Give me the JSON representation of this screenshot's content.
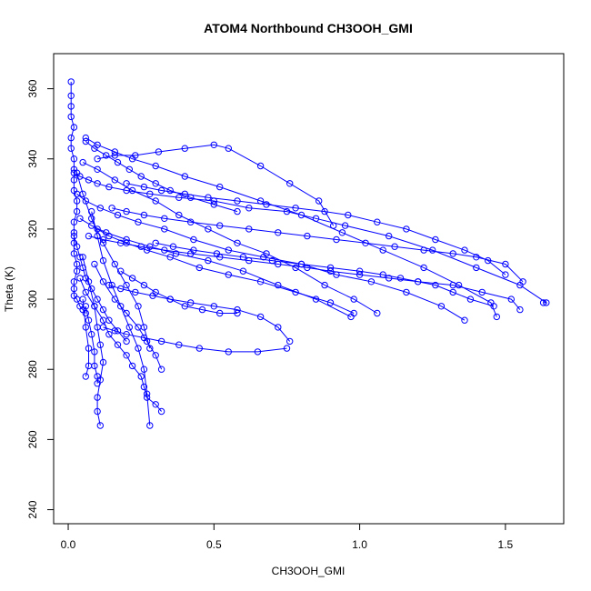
{
  "chart_data": {
    "type": "line",
    "title": "ATOM4 Northbound CH3OOH_GMI",
    "xlabel": "CH3OOH_GMI",
    "ylabel": "Theta (K)",
    "xlim": [
      -0.05,
      1.7
    ],
    "ylim": [
      236,
      370
    ],
    "x_ticks": [
      0.0,
      0.5,
      1.0,
      1.5
    ],
    "x_tick_labels": [
      "0.0",
      "0.5",
      "1.0",
      "1.5"
    ],
    "y_ticks": [
      240,
      260,
      280,
      300,
      320,
      340,
      360
    ],
    "y_tick_labels": [
      "240",
      "260",
      "280",
      "300",
      "320",
      "340",
      "360"
    ],
    "grid": false,
    "series_color": "#0000ff",
    "series": [
      {
        "x": [
          0.01,
          0.01,
          0.01,
          0.01,
          0.02,
          0.01,
          0.01,
          0.02,
          0.02,
          0.02,
          0.02,
          0.03,
          0.03,
          0.02,
          0.02,
          0.02,
          0.02,
          0.03,
          0.03,
          0.02,
          0.02,
          0.02,
          0.03,
          0.04,
          0.05,
          0.06
        ],
        "y": [
          362,
          358,
          355,
          352,
          349,
          346,
          343,
          340,
          337,
          334,
          331,
          328,
          325,
          322,
          319,
          316,
          313,
          310,
          308,
          305,
          303,
          301,
          300,
          298,
          297,
          296
        ]
      },
      {
        "x": [
          0.02,
          0.04,
          0.07,
          0.1,
          0.14,
          0.2,
          0.28,
          0.38,
          0.5,
          0.62,
          0.75,
          0.85,
          0.95,
          1.1,
          1.25,
          1.4,
          1.55,
          1.64,
          1.63
        ],
        "y": [
          336,
          335,
          334,
          333,
          332,
          331,
          330,
          329,
          328,
          326,
          325,
          323,
          321,
          318,
          314,
          309,
          304,
          299,
          299
        ]
      },
      {
        "x": [
          0.06,
          0.1,
          0.16,
          0.22,
          0.3,
          0.4,
          0.52,
          0.66,
          0.8,
          0.94,
          1.08,
          1.22,
          1.34,
          1.45,
          1.47
        ],
        "y": [
          346,
          344,
          342,
          340,
          338,
          335,
          332,
          328,
          324,
          319,
          314,
          309,
          304,
          299,
          295
        ]
      },
      {
        "x": [
          0.03,
          0.06,
          0.11,
          0.17,
          0.24,
          0.33,
          0.43,
          0.55,
          0.67,
          0.8,
          0.92,
          1.04,
          1.16,
          1.28,
          1.36
        ],
        "y": [
          330,
          328,
          326,
          324,
          322,
          320,
          317,
          314,
          312,
          310,
          307,
          305,
          302,
          298,
          294
        ]
      },
      {
        "x": [
          0.04,
          0.08,
          0.13,
          0.2,
          0.28,
          0.37,
          0.48,
          0.6,
          0.72,
          0.85,
          0.97
        ],
        "y": [
          323,
          321,
          319,
          317,
          315,
          313,
          311,
          308,
          304,
          300,
          295
        ]
      },
      {
        "x": [
          0.05,
          0.1,
          0.16,
          0.22,
          0.3,
          0.38,
          0.48,
          0.58,
          0.68,
          0.78,
          0.88,
          0.98,
          1.06
        ],
        "y": [
          339,
          337,
          334,
          331,
          328,
          324,
          320,
          316,
          313,
          309,
          304,
          300,
          296
        ]
      },
      {
        "x": [
          0.07,
          0.12,
          0.18,
          0.25,
          0.33,
          0.42,
          0.52,
          0.62,
          0.72,
          0.82,
          0.9,
          1.0,
          1.1,
          1.2,
          1.32,
          1.42,
          1.52,
          1.55
        ],
        "y": [
          318,
          317,
          316,
          315,
          314,
          313,
          312,
          311,
          310,
          309,
          308,
          307,
          306,
          305,
          304,
          302,
          300,
          297
        ]
      },
      {
        "x": [
          0.1,
          0.16,
          0.23,
          0.31,
          0.4,
          0.5,
          0.55,
          0.66,
          0.76,
          0.86,
          0.91
        ],
        "y": [
          340,
          341,
          341,
          342,
          343,
          344,
          343,
          338,
          333,
          328,
          321
        ]
      },
      {
        "x": [
          0.04,
          0.06,
          0.09,
          0.12,
          0.14,
          0.17,
          0.2,
          0.22,
          0.25,
          0.26,
          0.27,
          0.3,
          0.32
        ],
        "y": [
          306,
          302,
          298,
          294,
          290,
          287,
          284,
          281,
          278,
          275,
          272,
          270,
          268
        ]
      },
      {
        "x": [
          0.05,
          0.07,
          0.09,
          0.1,
          0.11,
          0.12,
          0.11,
          0.1,
          0.1,
          0.11
        ],
        "y": [
          312,
          305,
          298,
          292,
          287,
          282,
          277,
          272,
          268,
          264
        ]
      },
      {
        "x": [
          0.08,
          0.1,
          0.12,
          0.15,
          0.18,
          0.21,
          0.24,
          0.26,
          0.27,
          0.28
        ],
        "y": [
          325,
          318,
          311,
          304,
          298,
          292,
          286,
          280,
          273,
          264
        ]
      },
      {
        "x": [
          0.06,
          0.07,
          0.08,
          0.09,
          0.09,
          0.1,
          0.1
        ],
        "y": [
          298,
          294,
          290,
          285,
          281,
          278,
          276
        ]
      },
      {
        "x": [
          0.05,
          0.06,
          0.07,
          0.07,
          0.06
        ],
        "y": [
          300,
          292,
          286,
          281,
          278
        ]
      },
      {
        "x": [
          0.14,
          0.18,
          0.23,
          0.29,
          0.35,
          0.42,
          0.5,
          0.58,
          0.66,
          0.72,
          0.76
        ],
        "y": [
          304,
          303,
          302,
          301,
          300,
          299,
          298,
          297,
          295,
          292,
          288
        ]
      },
      {
        "x": [
          0.12,
          0.16,
          0.2,
          0.26,
          0.32,
          0.38,
          0.45,
          0.55,
          0.65,
          0.75
        ],
        "y": [
          292,
          291,
          290,
          289,
          288,
          287,
          286,
          285,
          285,
          286
        ]
      },
      {
        "x": [
          0.1,
          0.14,
          0.2,
          0.27,
          0.35,
          0.45,
          0.55,
          0.66,
          0.78,
          0.9,
          0.98
        ],
        "y": [
          320,
          318,
          316,
          314,
          312,
          309,
          307,
          305,
          302,
          299,
          296
        ]
      },
      {
        "x": [
          0.15,
          0.2,
          0.26,
          0.33,
          0.42,
          0.52,
          0.62,
          0.72,
          0.82,
          0.92,
          1.02,
          1.12,
          1.22,
          1.32,
          1.4,
          1.5,
          1.56
        ],
        "y": [
          326,
          325,
          324,
          323,
          322,
          321,
          320,
          319,
          318,
          317,
          316,
          315,
          314,
          313,
          312,
          310,
          305
        ]
      },
      {
        "x": [
          0.2,
          0.26,
          0.32,
          0.4,
          0.48,
          0.58,
          0.68,
          0.78,
          0.88,
          0.96,
          1.06,
          1.16,
          1.26,
          1.36,
          1.44,
          1.5
        ],
        "y": [
          333,
          332,
          331,
          330,
          329,
          328,
          327,
          326,
          325,
          324,
          322,
          320,
          317,
          314,
          311,
          307
        ]
      },
      {
        "x": [
          0.03,
          0.05,
          0.08,
          0.12,
          0.16,
          0.2,
          0.24,
          0.26,
          0.28
        ],
        "y": [
          336,
          330,
          323,
          316,
          310,
          304,
          298,
          292,
          286
        ]
      },
      {
        "x": [
          0.09,
          0.12,
          0.16,
          0.2,
          0.24,
          0.27,
          0.3,
          0.32
        ],
        "y": [
          310,
          305,
          300,
          296,
          292,
          288,
          284,
          280
        ]
      },
      {
        "x": [
          0.02,
          0.03,
          0.04,
          0.05,
          0.06,
          0.08,
          0.1,
          0.12,
          0.14,
          0.17,
          0.2
        ],
        "y": [
          318,
          315,
          312,
          309,
          306,
          303,
          300,
          297,
          294,
          291,
          288
        ]
      },
      {
        "x": [
          0.3,
          0.36,
          0.43,
          0.51,
          0.6,
          0.7,
          0.8,
          0.9,
          1.0,
          1.08,
          1.14,
          1.2,
          1.26,
          1.32,
          1.38,
          1.46
        ],
        "y": [
          316,
          315,
          314,
          313,
          312,
          311,
          310,
          309,
          308,
          307,
          306,
          305,
          304,
          302,
          300,
          298
        ]
      },
      {
        "x": [
          0.06,
          0.09,
          0.13,
          0.17,
          0.21,
          0.25,
          0.3,
          0.35,
          0.42,
          0.5,
          0.58
        ],
        "y": [
          345,
          343,
          341,
          339,
          337,
          335,
          333,
          331,
          329,
          327,
          325
        ]
      },
      {
        "x": [
          0.18,
          0.22,
          0.26,
          0.3,
          0.35,
          0.4,
          0.46,
          0.52,
          0.58
        ],
        "y": [
          308,
          306,
          304,
          302,
          300,
          298,
          297,
          296,
          296
        ]
      }
    ]
  }
}
